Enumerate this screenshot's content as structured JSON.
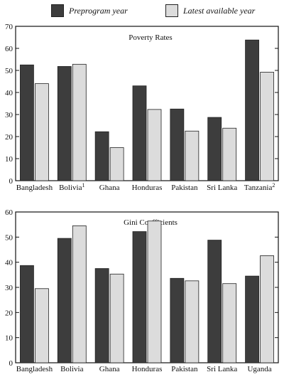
{
  "legend": {
    "series1": "Preprogram year",
    "series2": "Latest available year"
  },
  "colors": {
    "series1": "#3d3d3d",
    "series2": "#dcdcdc",
    "axis": "#111111"
  },
  "chart_data": [
    {
      "type": "bar",
      "title": "Poverty Rates",
      "categories": [
        "Bangladesh",
        "Bolivia",
        "Ghana",
        "Honduras",
        "Pakistan",
        "Sri Lanka",
        "Tanzania"
      ],
      "category_superscripts": [
        "",
        "1",
        "",
        "",
        "",
        "",
        "2"
      ],
      "series": [
        {
          "name": "Preprogram year",
          "values": [
            52.5,
            51.8,
            22.2,
            43.0,
            32.5,
            28.7,
            63.8
          ]
        },
        {
          "name": "Latest available year",
          "values": [
            44.0,
            52.8,
            15.0,
            32.3,
            22.5,
            23.8,
            49.2
          ]
        }
      ],
      "ylim": [
        0,
        70
      ],
      "yticks": [
        0,
        10,
        20,
        30,
        40,
        50,
        60,
        70
      ],
      "xlabel": "",
      "ylabel": ""
    },
    {
      "type": "bar",
      "title": "Gini Coefficients",
      "categories": [
        "Bangladesh",
        "Bolivia",
        "Ghana",
        "Honduras",
        "Pakistan",
        "Sri Lanka",
        "Uganda"
      ],
      "category_superscripts": [
        "",
        "",
        "",
        "",
        "",
        "",
        ""
      ],
      "series": [
        {
          "name": "Preprogram year",
          "values": [
            38.7,
            49.5,
            37.5,
            52.2,
            33.6,
            48.8,
            34.5
          ]
        },
        {
          "name": "Latest available year",
          "values": [
            29.5,
            54.5,
            35.3,
            56.4,
            32.6,
            31.5,
            42.6
          ]
        }
      ],
      "ylim": [
        0,
        60
      ],
      "yticks": [
        0,
        10,
        20,
        30,
        40,
        50,
        60
      ],
      "xlabel": "",
      "ylabel": ""
    }
  ]
}
